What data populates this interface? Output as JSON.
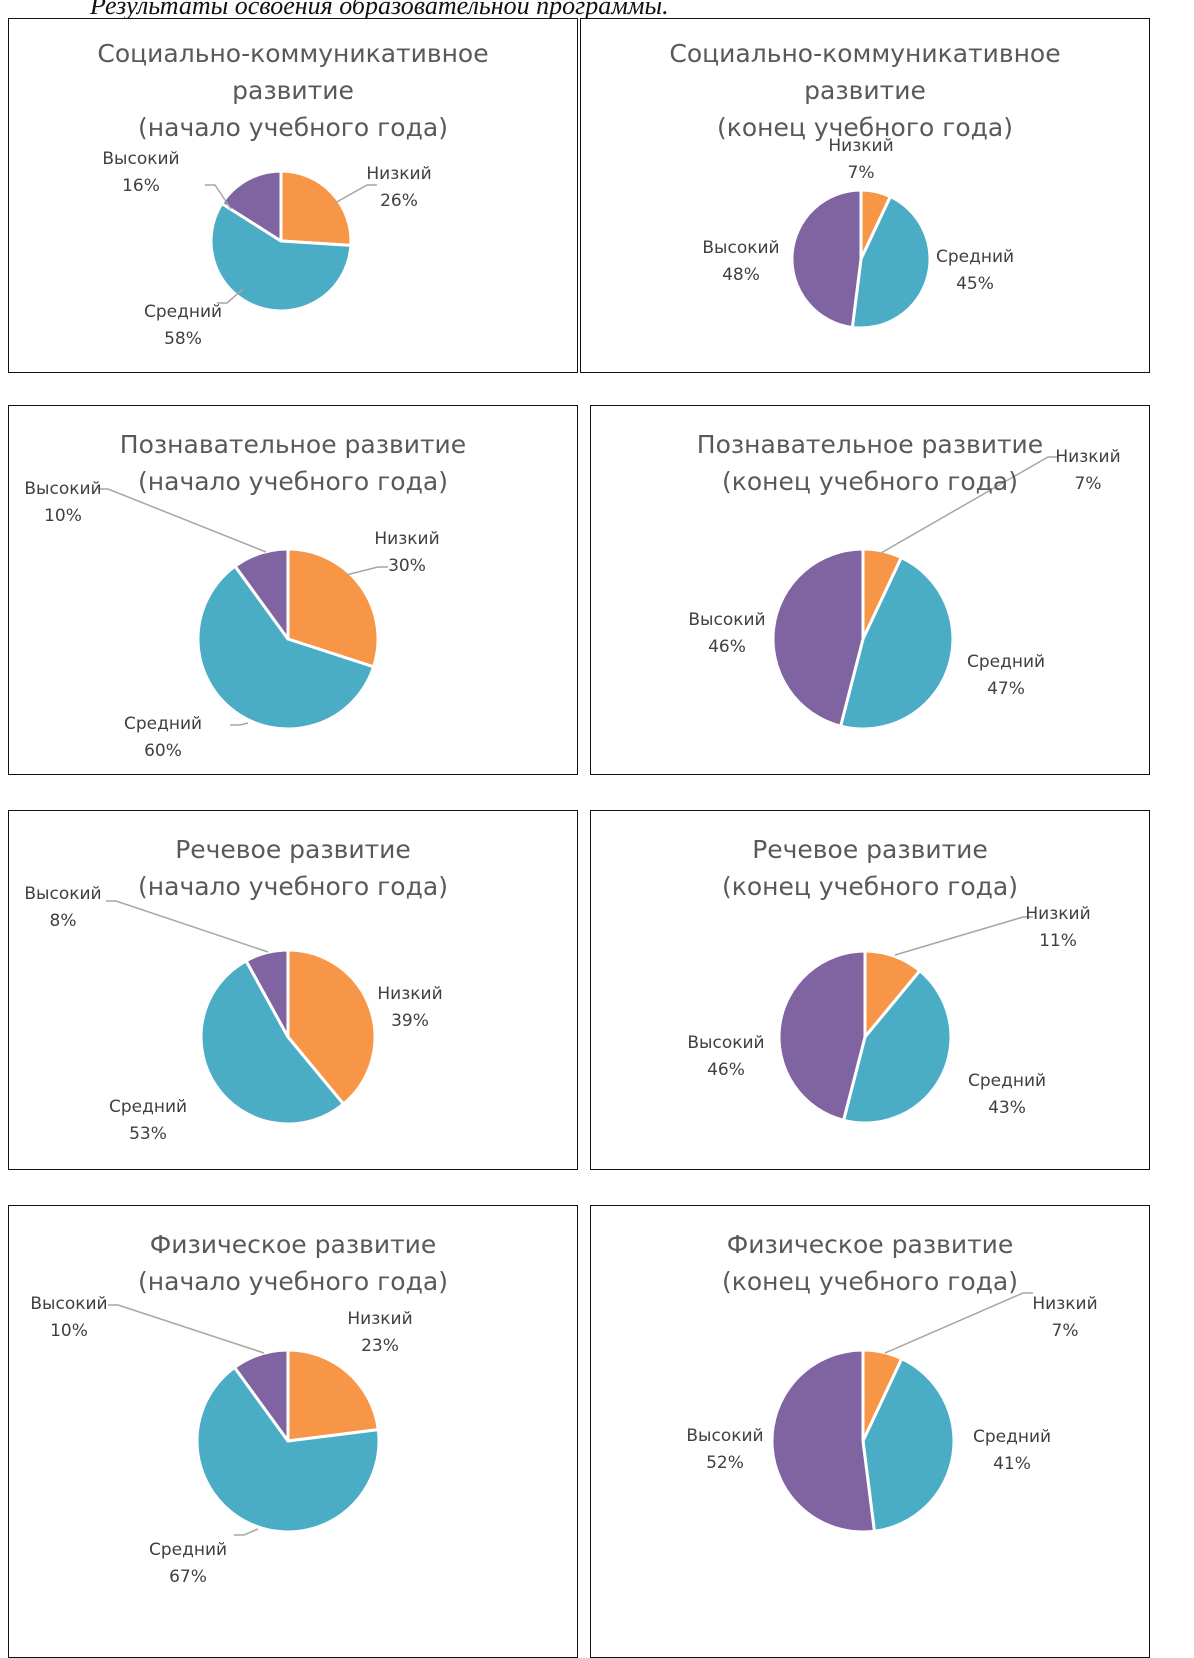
{
  "page": {
    "heading": "Результаты освоения образовательной программы."
  },
  "colors": {
    "low": "#F79646",
    "medium": "#4BACC6",
    "high": "#8064A2"
  },
  "chart_data": [
    {
      "type": "pie",
      "title": "Социально-коммуникативное\nразвитие\n(начало учебного года)",
      "labels": [
        "Низкий",
        "Средний",
        "Высокий"
      ],
      "values": [
        26,
        58,
        16
      ],
      "value_labels": [
        "26%",
        "58%",
        "16%"
      ]
    },
    {
      "type": "pie",
      "title": "Социально-коммуникативное\nразвитие\n(конец учебного года)",
      "labels": [
        "Низкий",
        "Средний",
        "Высокий"
      ],
      "values": [
        7,
        45,
        48
      ],
      "value_labels": [
        "7%",
        "45%",
        "48%"
      ]
    },
    {
      "type": "pie",
      "title": "Познавательное  развитие\n(начало учебного года)",
      "labels": [
        "Низкий",
        "Средний",
        "Высокий"
      ],
      "values": [
        30,
        60,
        10
      ],
      "value_labels": [
        "30%",
        "60%",
        "10%"
      ]
    },
    {
      "type": "pie",
      "title": "Познавательное  развитие\n(конец учебного года)",
      "labels": [
        "Низкий",
        "Средний",
        "Высокий"
      ],
      "values": [
        7,
        47,
        46
      ],
      "value_labels": [
        "7%",
        "47%",
        "46%"
      ]
    },
    {
      "type": "pie",
      "title": "Речевое развитие\n(начало учебного года)",
      "labels": [
        "Низкий",
        "Средний",
        "Высокий"
      ],
      "values": [
        39,
        53,
        8
      ],
      "value_labels": [
        "39%",
        "53%",
        "8%"
      ]
    },
    {
      "type": "pie",
      "title": "Речевое развитие\n(конец учебного года)",
      "labels": [
        "Низкий",
        "Средний",
        "Высокий"
      ],
      "values": [
        11,
        43,
        46
      ],
      "value_labels": [
        "11%",
        "43%",
        "46%"
      ]
    },
    {
      "type": "pie",
      "title": "Физическое развитие\n(начало учебного года)",
      "labels": [
        "Низкий",
        "Средний",
        "Высокий"
      ],
      "values": [
        23,
        67,
        10
      ],
      "value_labels": [
        "23%",
        "67%",
        "10%"
      ]
    },
    {
      "type": "pie",
      "title": "Физическое развитие\n(конец учебного года)",
      "labels": [
        "Низкий",
        "Средний",
        "Высокий"
      ],
      "values": [
        7,
        41,
        52
      ],
      "value_labels": [
        "7%",
        "41%",
        "52%"
      ]
    }
  ]
}
